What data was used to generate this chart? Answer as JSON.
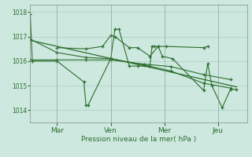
{
  "background_color": "#cce8df",
  "grid_color": "#aacfc4",
  "line_color": "#2d6e2d",
  "ylim": [
    1013.5,
    1018.3
  ],
  "yticks": [
    1014,
    1015,
    1016,
    1017,
    1018
  ],
  "ylabel": "Pression niveau de la mer( hPa )",
  "day_labels": [
    "Mar",
    "Ven",
    "Mer",
    "Jeu"
  ],
  "day_positions": [
    26,
    78,
    130,
    182
  ],
  "xlim": [
    0,
    210
  ],
  "series1": {
    "x": [
      0,
      2,
      26,
      52,
      54,
      56,
      78,
      82,
      86,
      96,
      104,
      116,
      118,
      120,
      124,
      128,
      138,
      168,
      172,
      176,
      186,
      194,
      200
    ],
    "y": [
      1017.9,
      1016.0,
      1016.0,
      1015.15,
      1014.2,
      1014.2,
      1016.1,
      1017.3,
      1017.3,
      1015.8,
      1015.8,
      1015.8,
      1016.6,
      1016.6,
      1016.6,
      1016.2,
      1016.1,
      1014.8,
      1015.9,
      1015.0,
      1014.1,
      1014.85,
      1014.85
    ]
  },
  "series2": {
    "x": [
      0,
      26,
      54,
      78,
      110,
      136,
      168,
      194
    ],
    "y": [
      1016.9,
      1016.35,
      1016.15,
      1016.1,
      1015.85,
      1015.6,
      1015.1,
      1014.9
    ]
  },
  "series3": {
    "x": [
      26,
      54,
      70,
      78,
      82,
      96,
      104,
      116,
      124,
      132,
      168,
      172
    ],
    "y": [
      1016.55,
      1016.5,
      1016.6,
      1017.05,
      1017.0,
      1016.55,
      1016.55,
      1016.2,
      1016.6,
      1016.6,
      1016.55,
      1016.6
    ]
  },
  "series4": {
    "x": [
      0,
      26,
      54,
      78,
      110,
      136,
      168,
      194
    ],
    "y": [
      1016.05,
      1016.05,
      1016.05,
      1016.05,
      1015.88,
      1015.78,
      1015.45,
      1015.25
    ]
  },
  "trend_line": {
    "x": [
      0,
      200
    ],
    "y": [
      1016.85,
      1014.95
    ]
  }
}
